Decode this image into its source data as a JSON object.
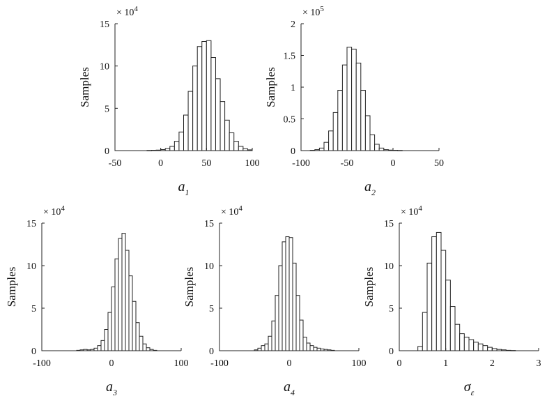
{
  "chart_data": [
    {
      "type": "bar",
      "subtype": "histogram",
      "ylabel": "Samples",
      "xlabel": "a",
      "xlabel_sub": "1",
      "y_exponent": "× 10^4",
      "xlim": [
        -50,
        100
      ],
      "ylim": [
        0,
        150000
      ],
      "xticks": [
        -50,
        0,
        50,
        100
      ],
      "yticks": [
        0,
        50000,
        100000,
        150000
      ],
      "ytick_labels": [
        "0",
        "5",
        "10",
        "15"
      ],
      "bin_edges_start": -50,
      "bin_width": 5,
      "counts": [
        0,
        0,
        0,
        0,
        0,
        0,
        0,
        200,
        400,
        600,
        1200,
        2500,
        5000,
        11000,
        22000,
        42000,
        70000,
        100000,
        123000,
        129000,
        130000,
        110000,
        85000,
        58000,
        36000,
        21000,
        11000,
        5000,
        2200,
        900,
        0
      ]
    },
    {
      "type": "bar",
      "subtype": "histogram",
      "ylabel": "Samples",
      "xlabel": "a",
      "xlabel_sub": "2",
      "y_exponent": "× 10^5",
      "xlim": [
        -100,
        50
      ],
      "ylim": [
        0,
        200000
      ],
      "xticks": [
        -100,
        -50,
        0,
        50
      ],
      "yticks": [
        0,
        50000,
        100000,
        150000,
        200000
      ],
      "ytick_labels": [
        "0",
        "0.5",
        "1",
        "1.5",
        "2"
      ],
      "bin_edges_start": -100,
      "bin_width": 5,
      "counts": [
        0,
        0,
        500,
        1500,
        4000,
        13000,
        31000,
        60000,
        95000,
        135000,
        163000,
        160000,
        138000,
        95000,
        55000,
        25000,
        10000,
        4000,
        1500,
        800,
        500,
        300,
        0,
        0,
        0,
        0,
        0,
        0,
        0,
        0
      ]
    },
    {
      "type": "bar",
      "subtype": "histogram",
      "ylabel": "Samples",
      "xlabel": "a",
      "xlabel_sub": "3",
      "y_exponent": "× 10^4",
      "xlim": [
        -100,
        100
      ],
      "ylim": [
        0,
        150000
      ],
      "xticks": [
        -100,
        0,
        100
      ],
      "yticks": [
        0,
        50000,
        100000,
        150000
      ],
      "ytick_labels": [
        "0",
        "5",
        "10",
        "15"
      ],
      "bin_edges_start": -100,
      "bin_width": 5,
      "counts": [
        0,
        0,
        0,
        0,
        0,
        0,
        0,
        0,
        0,
        0,
        500,
        1000,
        1500,
        1000,
        1500,
        3000,
        6000,
        12000,
        25000,
        45000,
        75000,
        108000,
        132000,
        138000,
        118000,
        88000,
        58000,
        33000,
        17000,
        8000,
        3500,
        1500,
        500,
        0,
        0,
        0,
        0,
        0,
        0,
        0
      ]
    },
    {
      "type": "bar",
      "subtype": "histogram",
      "ylabel": "Samples",
      "xlabel": "a",
      "xlabel_sub": "4",
      "y_exponent": "× 10^4",
      "xlim": [
        -100,
        100
      ],
      "ylim": [
        0,
        150000
      ],
      "xticks": [
        -100,
        0,
        100
      ],
      "yticks": [
        0,
        50000,
        100000,
        150000
      ],
      "ytick_labels": [
        "0",
        "5",
        "10",
        "15"
      ],
      "bin_edges_start": -100,
      "bin_width": 5,
      "counts": [
        0,
        0,
        0,
        0,
        0,
        0,
        0,
        0,
        0,
        0,
        1000,
        3000,
        6000,
        8000,
        17000,
        35000,
        65000,
        100000,
        128000,
        134000,
        133000,
        103000,
        65000,
        36000,
        16000,
        9000,
        6000,
        4000,
        3000,
        2000,
        1500,
        1000,
        500,
        0,
        0,
        0,
        0,
        0,
        0,
        0
      ]
    },
    {
      "type": "bar",
      "subtype": "histogram",
      "ylabel": "Samples",
      "xlabel": "σ",
      "xlabel_sub": "ε",
      "y_exponent": "× 10^4",
      "xlim": [
        0,
        3
      ],
      "ylim": [
        0,
        150000
      ],
      "xticks": [
        0,
        1,
        2,
        3
      ],
      "yticks": [
        0,
        50000,
        100000,
        150000
      ],
      "ytick_labels": [
        "0",
        "5",
        "10",
        "15"
      ],
      "bin_edges_start": 0,
      "bin_width": 0.1,
      "counts": [
        0,
        0,
        0,
        0,
        5000,
        45000,
        103000,
        134000,
        139000,
        118000,
        83000,
        52000,
        31000,
        20000,
        16000,
        13000,
        10000,
        8000,
        6000,
        4000,
        2500,
        1500,
        1000,
        500,
        300,
        0,
        0,
        0,
        0,
        0
      ]
    }
  ]
}
